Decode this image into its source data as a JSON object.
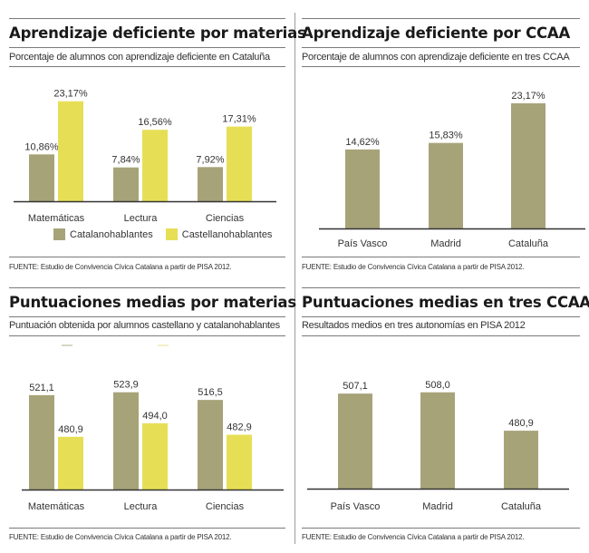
{
  "colors": {
    "catalan": "#a7a379",
    "castilian": "#e6df55",
    "single": "#a7a379",
    "axis": "#333333"
  },
  "legend": {
    "items": [
      {
        "label": "Catalanohablantes",
        "color": "#a7a379"
      },
      {
        "label": "Castellanohablantes",
        "color": "#e6df55"
      }
    ]
  },
  "chart_data": [
    {
      "id": "learning-by-subject",
      "type": "bar",
      "title": "Aprendizaje deficiente por materias",
      "subtitle": "Porcentaje de alumnos con aprendizaje deficiente en Cataluña",
      "source": "FUENTE: Estudio de Convivencia Cívica Catalana a partir de PISA 2012.",
      "categories": [
        "Matemáticas",
        "Lectura",
        "Ciencias"
      ],
      "series": [
        {
          "name": "Catalanohablantes",
          "values": [
            10.86,
            7.84,
            7.92
          ],
          "labels": [
            "10,86%",
            "7,84%",
            "7,92%"
          ]
        },
        {
          "name": "Castellanohablantes",
          "values": [
            23.17,
            16.56,
            17.31
          ],
          "labels": [
            "23,17%",
            "16,56%",
            "17,31%"
          ]
        }
      ],
      "ylim": [
        0,
        25
      ],
      "legend": "bottom",
      "grid": false
    },
    {
      "id": "learning-by-region",
      "type": "bar",
      "title": "Aprendizaje deficiente por CCAA",
      "subtitle": "Porcentaje de alumnos con aprendizaje deficiente en tres CCAA",
      "source": "FUENTE: Estudio de Convivencia Cívica Catalana a partir de PISA 2012.",
      "categories": [
        "País Vasco",
        "Madrid",
        "Cataluña"
      ],
      "values": [
        14.62,
        15.83,
        23.17
      ],
      "labels": [
        "14,62%",
        "15,83%",
        "23,17%"
      ],
      "ylim": [
        0,
        25
      ],
      "grid": false
    },
    {
      "id": "scores-by-subject",
      "type": "bar",
      "title": "Puntuaciones medias por materias",
      "subtitle": "Puntuación obtenida por alumnos castellano y catalanohablantes",
      "source": "FUENTE: Estudio de Convivencia Cívica Catalana a partir de PISA 2012.",
      "categories": [
        "Matemáticas",
        "Lectura",
        "Ciencias"
      ],
      "series": [
        {
          "name": "Catalanohablantes",
          "values": [
            521.1,
            523.9,
            516.5
          ],
          "labels": [
            "521,1",
            "523,9",
            "516,5"
          ]
        },
        {
          "name": "Castellanohablantes",
          "values": [
            480.9,
            494.0,
            482.9
          ],
          "labels": [
            "480,9",
            "494,0",
            "482,9"
          ]
        }
      ],
      "ylim": [
        430,
        535
      ],
      "grid": false
    },
    {
      "id": "scores-by-region",
      "type": "bar",
      "title": "Puntuaciones medias en tres CCAA",
      "subtitle": "Resultados medios en tres autonomías en PISA 2012",
      "source": "FUENTE: Estudio de Convivencia Cívica Catalana a partir de PISA 2012.",
      "categories": [
        "País Vasco",
        "Madrid",
        "Cataluña"
      ],
      "values": [
        507.1,
        508.0,
        480.9
      ],
      "labels": [
        "507,1",
        "508,0",
        "480,9"
      ],
      "ylim": [
        440,
        520
      ],
      "grid": false
    }
  ]
}
